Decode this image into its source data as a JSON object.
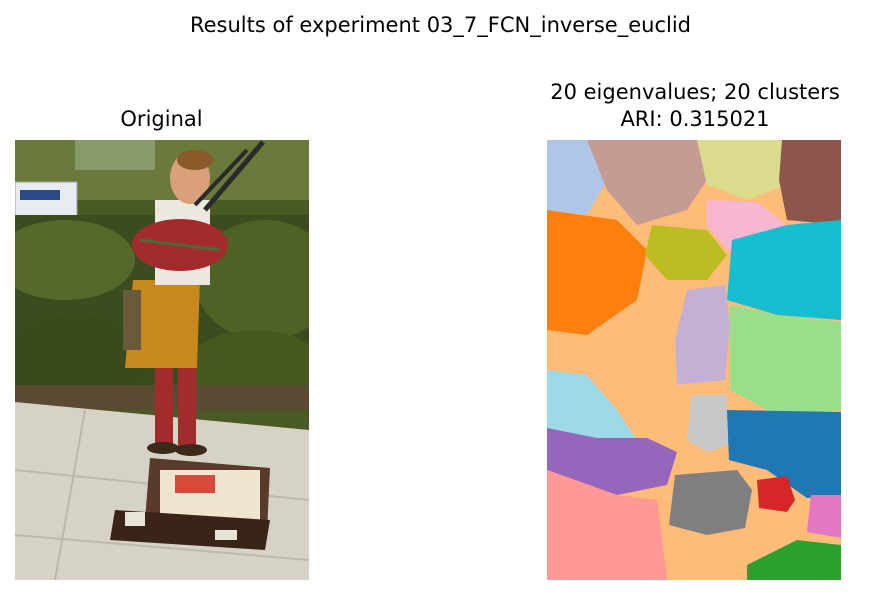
{
  "suptitle": "Results of experiment 03_7_FCN_inverse_euclid",
  "panels": {
    "original": {
      "title": "Original",
      "description": "Photograph of a bagpiper in a red tartan and kilt with an open instrument case on a sidewalk"
    },
    "segmentation": {
      "title_line1": "20 eigenvalues; 20 clusters",
      "title_line2": "ARI: 0.315021"
    }
  },
  "colors": {
    "grass_dark": "#3c4a1c",
    "grass_mid": "#5e6d2c",
    "sidewalk": "#d9d6cc",
    "kilt": "#c8871f",
    "tartan": "#a42b2b",
    "seg_peach": "#ffbb78",
    "seg_blue": "#1f77b4",
    "seg_orange": "#ff7f0e",
    "seg_cyan": "#17becf",
    "seg_green": "#2ca02c",
    "seg_red": "#d62728",
    "seg_pink": "#ff9896",
    "seg_purple": "#9467bd",
    "seg_gray": "#7f7f7f"
  }
}
